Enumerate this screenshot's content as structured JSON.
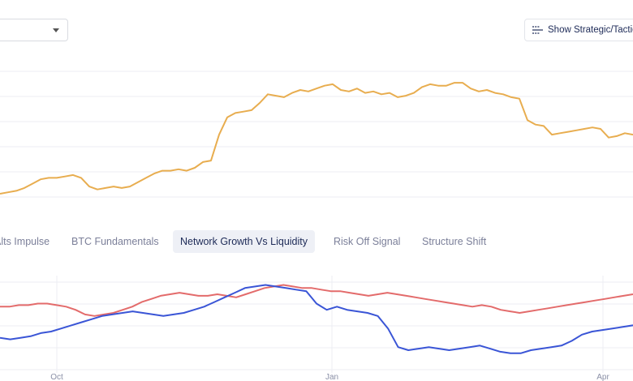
{
  "header": {
    "dropdown": {
      "value": ""
    },
    "toggle_button": {
      "label": "Show Strategic/Tactical"
    }
  },
  "tabs": [
    {
      "label": "Alts Impulse",
      "active": false
    },
    {
      "label": "BTC Fundamentals",
      "active": false
    },
    {
      "label": "Network Growth Vs Liquidity",
      "active": true
    },
    {
      "label": "Risk Off Signal",
      "active": false
    },
    {
      "label": "Structure Shift",
      "active": false
    }
  ],
  "colors": {
    "price_line": "#e8ad4f",
    "network_growth_line": "#e36b6b",
    "liquidity_line": "#3a55d6",
    "grid": "#eceef3"
  },
  "chart_data": [
    {
      "type": "line",
      "title": "",
      "series": [
        {
          "values": [
            9,
            10,
            11,
            13,
            16,
            19,
            20,
            20,
            21,
            22,
            20,
            14,
            12,
            13,
            14,
            13,
            14,
            17,
            20,
            23,
            25,
            25,
            26,
            25,
            27,
            31,
            32,
            50,
            62,
            65,
            66,
            67,
            72,
            78,
            77,
            76,
            79,
            81,
            80,
            82,
            84,
            85,
            81,
            80,
            82,
            79,
            80,
            78,
            79,
            76,
            77,
            79,
            83,
            85,
            84,
            84,
            86,
            86,
            82,
            80,
            81,
            79,
            78,
            76,
            75,
            60,
            57,
            56,
            50,
            51,
            52,
            53,
            54,
            55,
            54,
            48,
            49,
            51,
            50
          ]
        }
      ]
    },
    {
      "type": "line",
      "x_ticks": [
        "Oct",
        "Jan",
        "Apr"
      ],
      "series": [
        {
          "values": [
            60,
            60,
            61,
            61,
            62,
            62,
            61,
            60,
            58,
            55,
            54,
            55,
            56,
            58,
            60,
            63,
            65,
            67,
            68,
            69,
            68,
            67,
            67,
            68,
            67,
            66,
            68,
            70,
            72,
            73,
            74,
            73,
            72,
            72,
            71,
            70,
            70,
            69,
            68,
            67,
            68,
            69,
            68,
            67,
            66,
            65,
            64,
            63,
            62,
            61,
            60,
            61,
            60,
            58,
            57,
            56,
            57,
            58,
            59,
            60,
            61,
            62,
            63,
            64,
            65,
            66,
            67,
            68
          ]
        },
        {
          "values": [
            40,
            39,
            40,
            41,
            43,
            44,
            46,
            48,
            50,
            52,
            54,
            55,
            56,
            57,
            56,
            55,
            54,
            55,
            56,
            58,
            60,
            63,
            66,
            69,
            72,
            73,
            74,
            73,
            72,
            71,
            70,
            62,
            58,
            60,
            58,
            57,
            56,
            54,
            46,
            34,
            32,
            33,
            34,
            33,
            32,
            33,
            34,
            35,
            33,
            31,
            30,
            30,
            32,
            33,
            34,
            35,
            38,
            42,
            44,
            45,
            46,
            47,
            48
          ]
        }
      ]
    }
  ]
}
